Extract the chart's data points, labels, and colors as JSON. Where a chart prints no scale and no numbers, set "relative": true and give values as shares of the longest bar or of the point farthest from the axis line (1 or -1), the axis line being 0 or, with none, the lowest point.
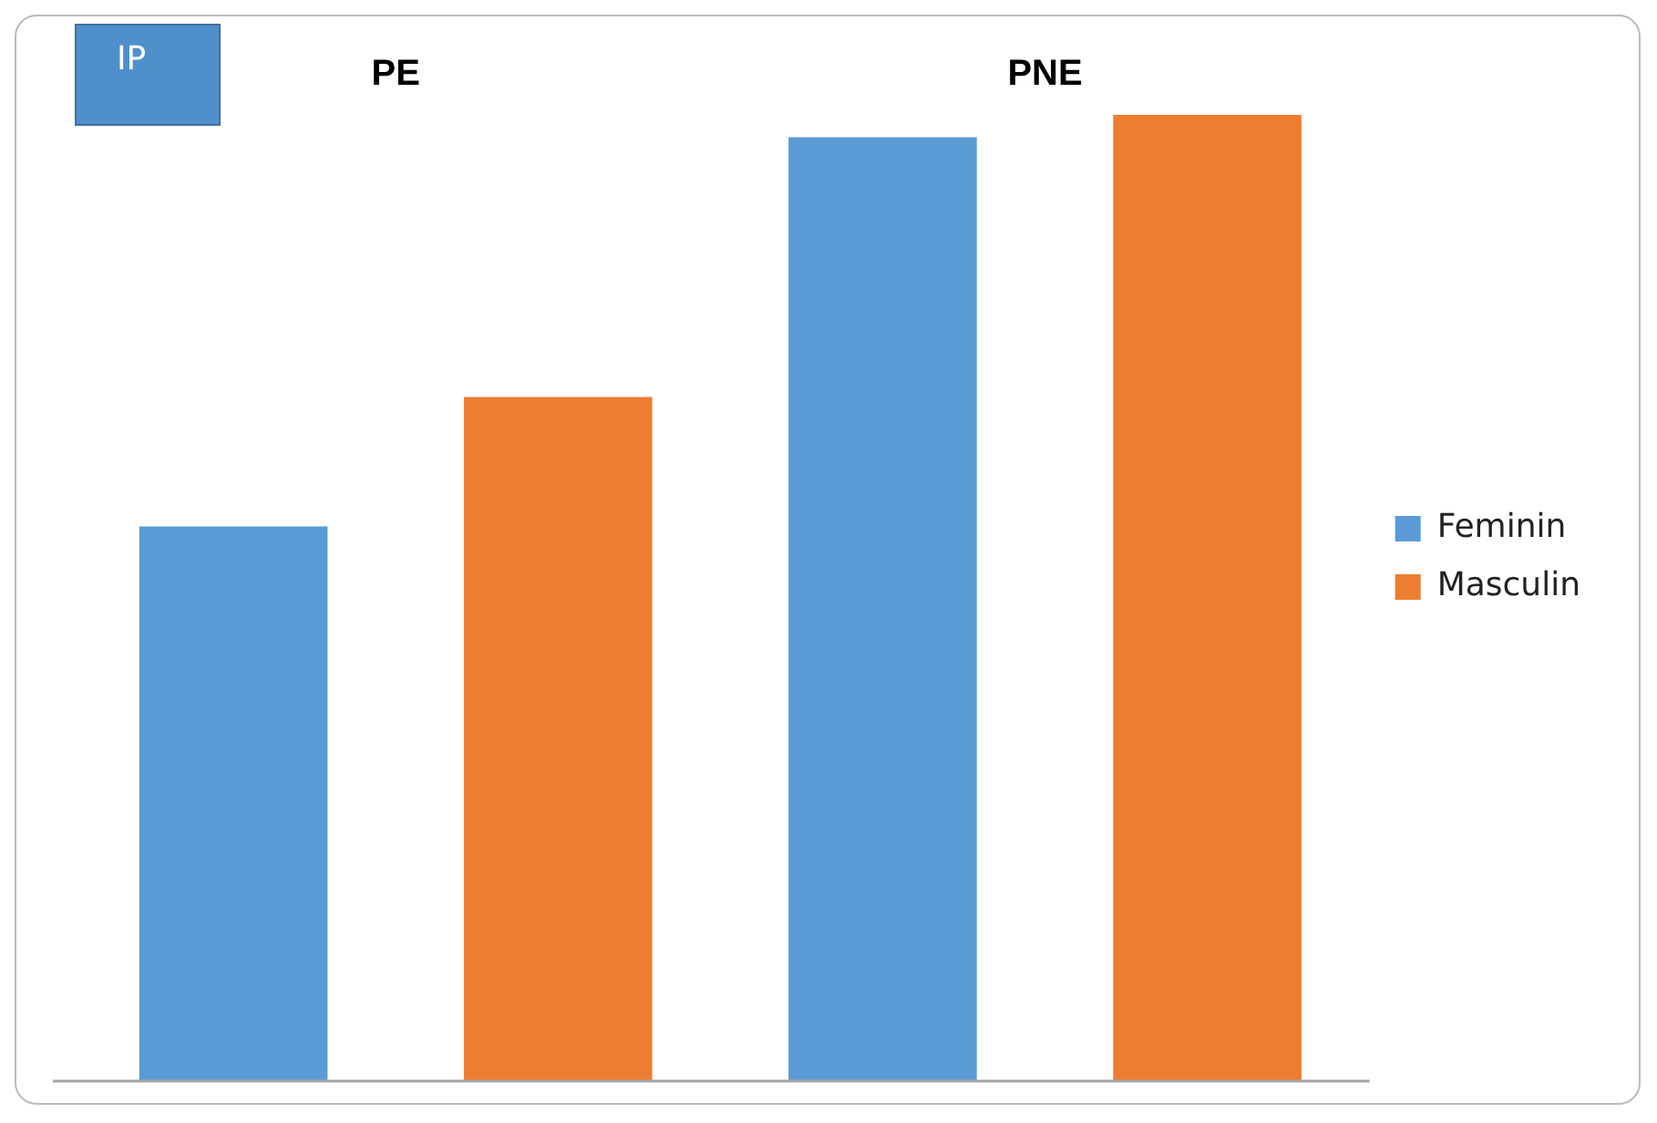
{
  "chart_data": {
    "type": "bar",
    "title": "IP",
    "categories": [
      "PE",
      "PNE"
    ],
    "relative": true,
    "series": [
      {
        "name": "Feminin",
        "color": "#5b9bd5",
        "values": [
          0.574,
          0.977
        ]
      },
      {
        "name": "Masculin",
        "color": "#ed7d31",
        "values": [
          0.708,
          1
        ]
      }
    ],
    "legend": "right",
    "grid": false
  }
}
